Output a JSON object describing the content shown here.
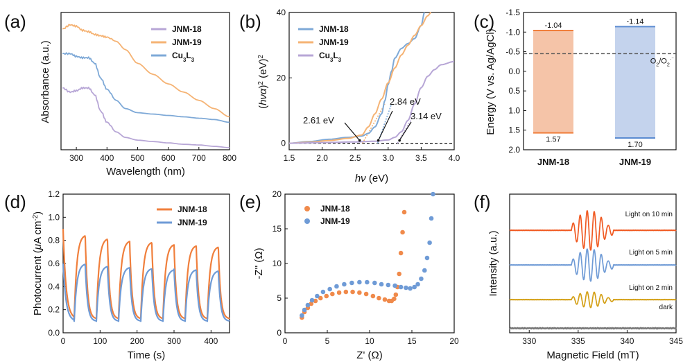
{
  "chart_data": [
    {
      "panel": "(a)",
      "type": "line",
      "title": "",
      "xlabel": "Wavelength (nm)",
      "ylabel": "Absorbance (a.u.)",
      "xlim": [
        250,
        800
      ],
      "ylim": [
        0,
        1
      ],
      "xticks": [
        "300",
        "400",
        "500",
        "600",
        "700",
        "800"
      ],
      "yticks": [],
      "legend_position": "top-right",
      "series": [
        {
          "name": "JNM-18",
          "color": "#b7a6d6",
          "x": [
            255,
            280,
            300,
            320,
            340,
            360,
            380,
            400,
            430,
            460,
            500,
            550,
            600,
            650,
            700,
            750,
            800
          ],
          "y": [
            0.45,
            0.42,
            0.43,
            0.45,
            0.45,
            0.4,
            0.28,
            0.2,
            0.13,
            0.09,
            0.07,
            0.06,
            0.05,
            0.04,
            0.035,
            0.025,
            0.015
          ]
        },
        {
          "name": "JNM-19",
          "color": "#f5b374",
          "x": [
            255,
            280,
            300,
            320,
            340,
            360,
            380,
            400,
            430,
            460,
            500,
            550,
            600,
            650,
            700,
            750,
            800
          ],
          "y": [
            0.88,
            0.91,
            0.9,
            0.87,
            0.86,
            0.84,
            0.83,
            0.82,
            0.79,
            0.73,
            0.63,
            0.55,
            0.48,
            0.42,
            0.36,
            0.3,
            0.24
          ]
        },
        {
          "name": "Cu3L3",
          "color": "#7ea9d7",
          "x": [
            255,
            280,
            300,
            320,
            340,
            360,
            380,
            400,
            430,
            460,
            500,
            550,
            600,
            650,
            700,
            750,
            800
          ],
          "y": [
            0.7,
            0.7,
            0.68,
            0.67,
            0.67,
            0.63,
            0.52,
            0.44,
            0.36,
            0.3,
            0.27,
            0.26,
            0.25,
            0.24,
            0.23,
            0.22,
            0.2
          ]
        }
      ]
    },
    {
      "panel": "(b)",
      "type": "line",
      "title": "",
      "xlabel": "hν (eV)",
      "ylabel": "(hνα)² (eV)²",
      "xlim": [
        1.5,
        4.0
      ],
      "ylim": [
        -2,
        40
      ],
      "xticks": [
        "1.5",
        "2.0",
        "2.5",
        "3.0",
        "3.5",
        "4.0"
      ],
      "yticks": [
        "0",
        "20",
        "40"
      ],
      "legend_position": "top-left",
      "series": [
        {
          "name": "JNM-18",
          "color": "#7ea9d7",
          "x": [
            1.5,
            1.8,
            2.1,
            2.4,
            2.6,
            2.7,
            2.8,
            2.9,
            2.95,
            3.0,
            3.05,
            3.1,
            3.2,
            3.3,
            3.4,
            3.5,
            3.55
          ],
          "y": [
            0,
            0.5,
            1.2,
            1.8,
            2.2,
            3.0,
            5.0,
            9.0,
            13.0,
            18.0,
            22.0,
            26.0,
            29.0,
            30.5,
            32.0,
            36.0,
            40.0
          ]
        },
        {
          "name": "JNM-19",
          "color": "#f5b374",
          "x": [
            1.5,
            1.8,
            2.1,
            2.4,
            2.6,
            2.7,
            2.8,
            2.9,
            3.0,
            3.1,
            3.2,
            3.3,
            3.4,
            3.5,
            3.6,
            3.65
          ],
          "y": [
            0,
            0.3,
            0.8,
            1.5,
            2.5,
            5.0,
            9.0,
            13.5,
            18.5,
            23.0,
            27.0,
            30.0,
            33.0,
            36.0,
            39.0,
            40.0
          ]
        },
        {
          "name": "Cu3L3",
          "color": "#b7a6d6",
          "x": [
            1.5,
            2.0,
            2.5,
            2.8,
            3.0,
            3.1,
            3.2,
            3.3,
            3.4,
            3.5,
            3.6,
            3.7,
            3.8,
            4.0
          ],
          "y": [
            0,
            0.2,
            0.4,
            0.6,
            1.0,
            1.8,
            3.5,
            7.0,
            12.0,
            17.0,
            20.5,
            22.5,
            24.0,
            25.0
          ]
        }
      ],
      "reference_lines": [
        {
          "type": "dashed",
          "color": "#111111",
          "x": [
            1.5,
            4.0
          ],
          "y": [
            0,
            0
          ]
        },
        {
          "type": "dotted",
          "color": "#f5b374",
          "x": [
            2.61,
            2.95
          ],
          "y": [
            0,
            12
          ]
        },
        {
          "type": "dotted",
          "color": "#7ea9d7",
          "x": [
            2.84,
            3.05
          ],
          "y": [
            0,
            12
          ]
        },
        {
          "type": "dotted",
          "color": "#b7a6d6",
          "x": [
            3.14,
            3.4
          ],
          "y": [
            0,
            9
          ]
        }
      ],
      "annotations": [
        {
          "text": "2.61 eV",
          "x": 2.61,
          "y": 0
        },
        {
          "text": "2.84 eV",
          "x": 2.84,
          "y": 0
        },
        {
          "text": "3.14 eV",
          "x": 3.14,
          "y": 0
        }
      ]
    },
    {
      "panel": "(c)",
      "type": "bar",
      "title": "",
      "xlabel": "",
      "ylabel": "Energy (V vs. Ag/AgCl)",
      "ylim": [
        2.0,
        -1.5
      ],
      "yticks": [
        "-1.5",
        "-1.0",
        "-0.5",
        "0.0",
        "0.5",
        "1.0",
        "1.5",
        "2.0"
      ],
      "categories": [
        "JNM-18",
        "JNM-19"
      ],
      "series": [
        {
          "name": "JNM-18",
          "color": "#f5c4a8",
          "edge": "#f07f3c",
          "top": -1.04,
          "bottom": 1.57,
          "top_label": "-1.04",
          "bottom_label": "1.57"
        },
        {
          "name": "JNM-19",
          "color": "#c4d3ed",
          "edge": "#5b8bd1",
          "top": -1.14,
          "bottom": 1.7,
          "top_label": "-1.14",
          "bottom_label": "1.70"
        }
      ],
      "reference_line": {
        "value": -0.45,
        "label": "O2/O2·⁻"
      }
    },
    {
      "panel": "(d)",
      "type": "line",
      "title": "",
      "xlabel": "Time  (s)",
      "ylabel": "Photocurrent (μA cm⁻²)",
      "xlim": [
        0,
        450
      ],
      "ylim": [
        0,
        1.2
      ],
      "xticks": [
        "0",
        "100",
        "200",
        "300",
        "400"
      ],
      "yticks": [
        "0.0",
        "0.2",
        "0.4",
        "0.6",
        "0.8",
        "1.0",
        "1.2"
      ],
      "legend_position": "top-right",
      "series": [
        {
          "name": "JNM-18",
          "color": "#f07f3c",
          "on_times": [
            0,
            30,
            90,
            150,
            210,
            270,
            330,
            390,
            450
          ],
          "on_level": [
            0.9,
            0.85,
            0.82,
            0.8,
            0.79,
            0.77,
            0.76,
            0.75,
            0.72
          ],
          "off_level": 0.12
        },
        {
          "name": "JNM-19",
          "color": "#6f9bd6",
          "on_times": [
            0,
            30,
            90,
            150,
            210,
            270,
            330,
            390,
            450
          ],
          "on_level": [
            0.6,
            0.6,
            0.58,
            0.57,
            0.56,
            0.55,
            0.55,
            0.54,
            0.52
          ],
          "off_level": 0.1
        }
      ]
    },
    {
      "panel": "(e)",
      "type": "scatter",
      "title": "",
      "xlabel": "Z' (Ω)",
      "ylabel": "-Z'' (Ω)",
      "xlim": [
        0,
        20
      ],
      "ylim": [
        0,
        20
      ],
      "xticks": [
        "0",
        "5",
        "10",
        "15",
        "20"
      ],
      "yticks": [
        "0",
        "5",
        "10",
        "15",
        "20"
      ],
      "legend_position": "top-left",
      "series": [
        {
          "name": "JNM-18",
          "color": "#f08a4b",
          "x": [
            2.0,
            2.3,
            2.7,
            3.1,
            3.6,
            4.2,
            4.9,
            5.6,
            6.4,
            7.2,
            8.0,
            8.8,
            9.6,
            10.4,
            11.1,
            11.8,
            12.3,
            12.6,
            12.9,
            13.1,
            13.3,
            13.5,
            13.7,
            13.9,
            14.1
          ],
          "y": [
            2.2,
            3.0,
            3.6,
            4.2,
            4.6,
            5.0,
            5.3,
            5.6,
            5.8,
            5.9,
            5.9,
            5.8,
            5.6,
            5.3,
            5.0,
            4.8,
            4.6,
            4.6,
            4.9,
            5.5,
            6.6,
            8.5,
            11.5,
            14.5,
            17.4
          ]
        },
        {
          "name": "JNM-19",
          "color": "#6f9bd6",
          "x": [
            2.0,
            2.3,
            2.7,
            3.2,
            3.8,
            4.5,
            5.3,
            6.1,
            7.0,
            7.9,
            8.8,
            9.7,
            10.6,
            11.4,
            12.2,
            13.0,
            13.7,
            14.3,
            14.8,
            15.3,
            15.7,
            16.1,
            16.5,
            16.8,
            17.1,
            17.3,
            17.5
          ],
          "y": [
            2.5,
            3.3,
            4.0,
            4.7,
            5.3,
            5.9,
            6.3,
            6.7,
            7.0,
            7.2,
            7.3,
            7.3,
            7.2,
            7.0,
            6.9,
            6.8,
            6.6,
            6.5,
            6.4,
            6.6,
            7.0,
            7.8,
            9.0,
            10.8,
            13.0,
            16.5,
            20.0
          ]
        }
      ]
    },
    {
      "panel": "(f)",
      "type": "line",
      "title": "",
      "xlabel": "Magnetic Field (mT)",
      "ylabel": "Intensity (a.u.)",
      "xlim": [
        328,
        345
      ],
      "ylim": [
        0,
        4.6
      ],
      "xticks": [
        "330",
        "335",
        "340",
        "345"
      ],
      "yticks": [],
      "series": [
        {
          "name": "Light on 10 min",
          "color": "#f05a22",
          "baseline": 3.4,
          "amplitude": 0.55
        },
        {
          "name": "Light on 5 min",
          "color": "#6f9bd6",
          "baseline": 2.25,
          "amplitude": 0.45
        },
        {
          "name": "Light on 2 min",
          "color": "#d4a017",
          "baseline": 1.1,
          "amplitude": 0.22
        },
        {
          "name": "dark",
          "color": "#777777",
          "baseline": 0.15,
          "amplitude": 0.02
        }
      ]
    }
  ]
}
